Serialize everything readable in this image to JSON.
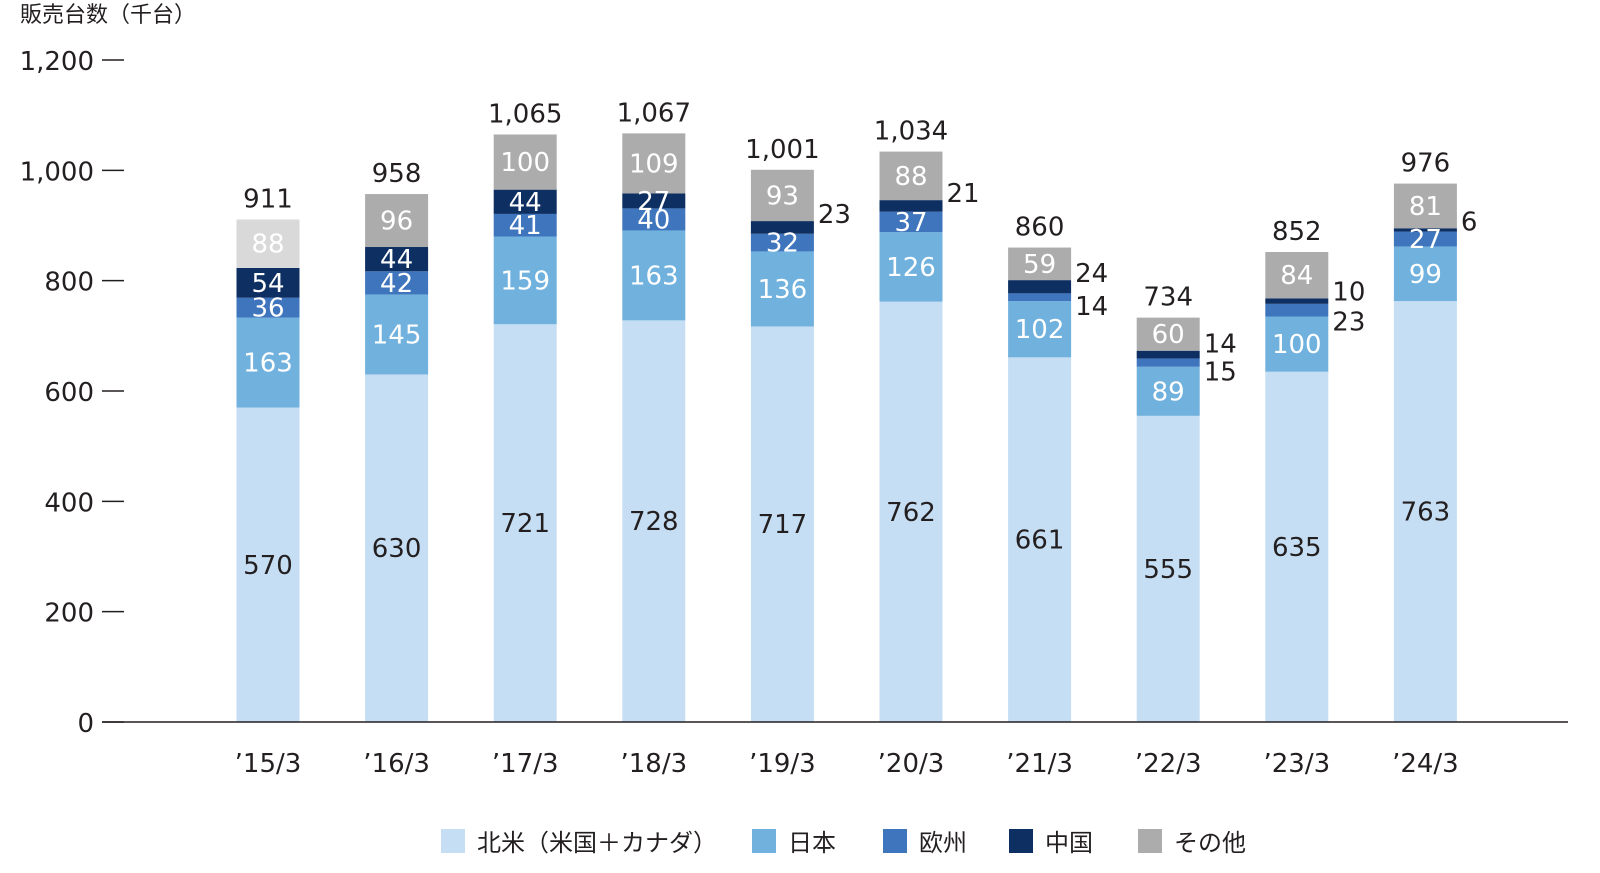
{
  "chart_data": {
    "type": "bar",
    "stacked": true,
    "ylabel": "販売台数（千台）",
    "ylim": [
      0,
      1200
    ],
    "yticks": [
      0,
      200,
      400,
      600,
      800,
      1000,
      1200
    ],
    "ytick_labels": [
      "0",
      "200",
      "400",
      "600",
      "800",
      "1,000",
      "1,200"
    ],
    "categories": [
      "’15/3",
      "’16/3",
      "’17/3",
      "’18/3",
      "’19/3",
      "’20/3",
      "’21/3",
      "’22/3",
      "’23/3",
      "’24/3"
    ],
    "totals": [
      911,
      958,
      1065,
      1067,
      1001,
      1034,
      860,
      734,
      852,
      976
    ],
    "total_labels": [
      "911",
      "958",
      "1,065",
      "1,067",
      "1,001",
      "1,034",
      "860",
      "734",
      "852",
      "976"
    ],
    "series": [
      {
        "name": "北米（米国＋カナダ）",
        "color": "#c5def3",
        "label_color": "#231f20",
        "values": [
          570,
          630,
          721,
          728,
          717,
          762,
          661,
          555,
          635,
          763
        ]
      },
      {
        "name": "日本",
        "color": "#70b1dd",
        "label_color": "#ffffff",
        "values": [
          163,
          145,
          159,
          163,
          136,
          126,
          102,
          89,
          100,
          99
        ]
      },
      {
        "name": "欧州",
        "color": "#3e75bc",
        "label_color": "#ffffff",
        "values": [
          36,
          42,
          41,
          40,
          32,
          37,
          14,
          15,
          23,
          27
        ]
      },
      {
        "name": "中国",
        "color": "#0d2f62",
        "label_color": "#ffffff",
        "values": [
          54,
          44,
          44,
          27,
          23,
          21,
          24,
          14,
          10,
          6
        ]
      },
      {
        "name": "その他",
        "color": "#acacac",
        "label_color": "#ffffff",
        "values": [
          88,
          96,
          100,
          109,
          93,
          88,
          59,
          60,
          84,
          81
        ]
      }
    ],
    "first_other_color": "#d9d9d9",
    "grid": false,
    "legend_position": "bottom"
  }
}
